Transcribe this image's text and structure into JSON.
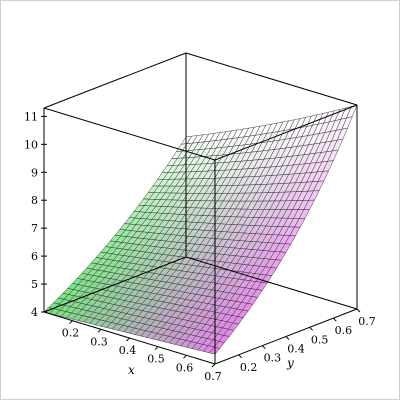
{
  "chart_data": {
    "type": "surface3d",
    "x_axis": {
      "label": "x",
      "range": [
        0.1,
        0.7
      ],
      "ticks": [
        "0.2",
        "0.3",
        "0.4",
        "0.5",
        "0.6",
        "0.7"
      ]
    },
    "y_axis": {
      "label": "y",
      "range": [
        0.1,
        0.7
      ],
      "ticks": [
        "0.2",
        "0.3",
        "0.4",
        "0.5",
        "0.6",
        "0.7"
      ]
    },
    "z_axis": {
      "label": "",
      "range": [
        4,
        11.3
      ],
      "ticks": [
        "4",
        "5",
        "6",
        "7",
        "8",
        "9",
        "10",
        "11"
      ]
    },
    "corner_values": {
      "x0.1_y0.1": 4.0,
      "x0.7_y0.1": 4.35,
      "x0.1_y0.7": 8.3,
      "x0.7_y0.7": 11.3
    },
    "grid_lines": 30,
    "bounding_box": true,
    "colors": {
      "mesh": "#2a2a2a",
      "box": "#000000",
      "low_x": "#5fe06a",
      "high_x": "#e070e6"
    }
  }
}
